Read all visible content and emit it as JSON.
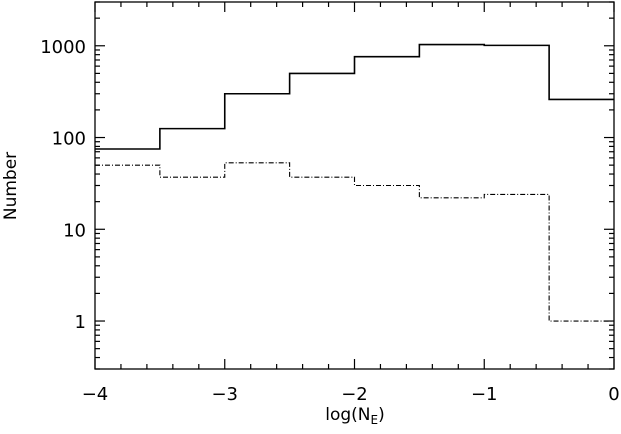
{
  "chart_data": {
    "type": "line",
    "step": true,
    "xlabel": "log(N",
    "xlabel_sub": "E",
    "xlabel_close": ")",
    "ylabel": "Number",
    "xlim": [
      -4,
      0
    ],
    "ylim": [
      0.3,
      3000
    ],
    "y_scale": "log",
    "x_ticks": [
      -4,
      -3,
      -2,
      -1,
      0
    ],
    "x_tick_labels": [
      "−4",
      "−3",
      "−2",
      "−1",
      "0"
    ],
    "y_ticks": [
      1,
      10,
      100,
      1000
    ],
    "y_tick_labels": [
      "1",
      "10",
      "100",
      "1000"
    ],
    "bin_edges": [
      -4.0,
      -3.5,
      -3.0,
      -2.5,
      -2.0,
      -1.5,
      -1.0,
      -0.5,
      0.0
    ],
    "series": [
      {
        "style": "solid",
        "values": [
          75,
          125,
          300,
          500,
          760,
          1030,
          1010,
          260
        ]
      },
      {
        "style": "dash-dot",
        "values": [
          50,
          37,
          53,
          37,
          30,
          22,
          24,
          1
        ]
      }
    ],
    "grid": false,
    "legend": "none"
  }
}
